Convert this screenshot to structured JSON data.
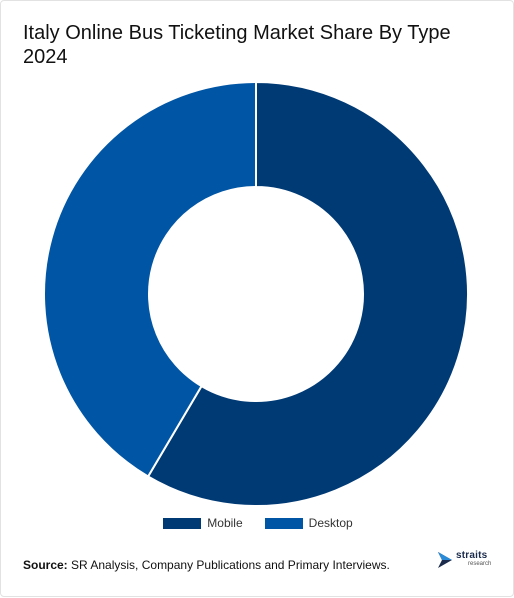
{
  "title": "Italy Online Bus Ticketing Market Share By Type 2024",
  "source": {
    "label": "Source:",
    "text": "SR Analysis, Company Publications and Primary Interviews."
  },
  "logo": {
    "name": "straits",
    "tagline": "research",
    "icon": "straits-logo-icon"
  },
  "colors": {
    "mobile": "#003a75",
    "desktop": "#0055a4"
  },
  "chart_data": {
    "type": "pie",
    "variant": "donut",
    "categories": [
      "Mobile",
      "Desktop"
    ],
    "values": [
      58.5,
      41.5
    ],
    "legend": "bottom",
    "title": "Italy Online Bus Ticketing Market Share By Type 2024"
  }
}
